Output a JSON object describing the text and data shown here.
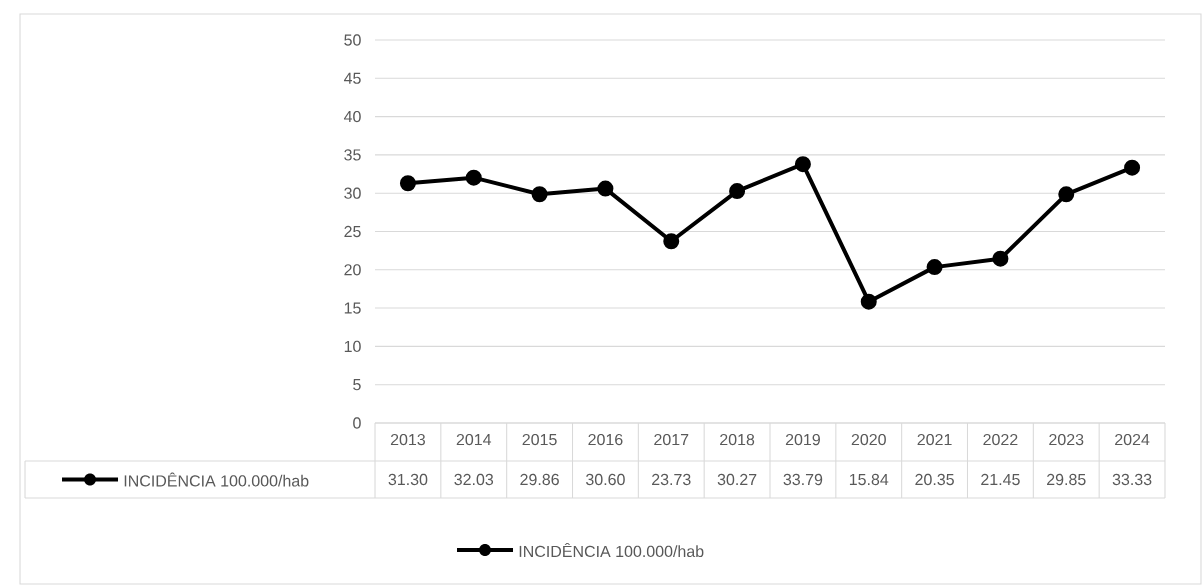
{
  "chart_data": {
    "type": "line",
    "categories": [
      "2013",
      "2014",
      "2015",
      "2016",
      "2017",
      "2018",
      "2019",
      "2020",
      "2021",
      "2022",
      "2023",
      "2024"
    ],
    "series": [
      {
        "name": "INCIDÊNCIA 100.000/hab",
        "color": "#000000",
        "values": [
          31.3,
          32.03,
          29.86,
          30.6,
          23.73,
          30.27,
          33.79,
          15.84,
          20.35,
          21.45,
          29.85,
          33.33
        ],
        "value_labels": [
          "31.30",
          "32.03",
          "29.86",
          "30.60",
          "23.73",
          "30.27",
          "33.79",
          "15.84",
          "20.35",
          "21.45",
          "29.85",
          "33.33"
        ]
      }
    ],
    "ylim": [
      0,
      50
    ],
    "yticks": [
      0,
      5,
      10,
      15,
      20,
      25,
      30,
      35,
      40,
      45,
      50
    ],
    "grid": "y",
    "legend": "bottom",
    "marker": "circle",
    "line_style": "solid"
  }
}
